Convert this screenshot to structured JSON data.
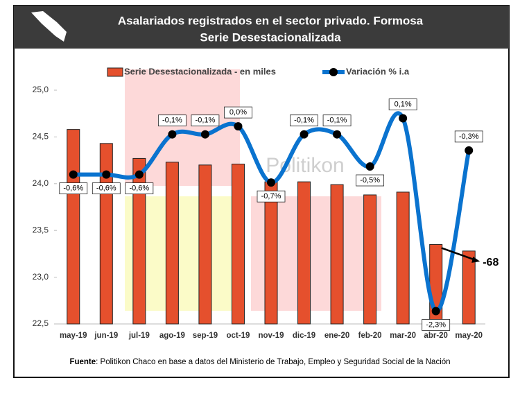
{
  "chart_data": {
    "type": "bar-line",
    "title": "Asalariados registrados en el sector privado. Formosa",
    "subtitle": "Serie Desestacionalizada",
    "categories": [
      "may-19",
      "jun-19",
      "jul-19",
      "ago-19",
      "sep-19",
      "oct-19",
      "nov-19",
      "dic-19",
      "ene-20",
      "feb-20",
      "mar-20",
      "abr-20",
      "may-20"
    ],
    "series": [
      {
        "name": "Serie Desestacionalizada - en miles",
        "color": "#e5502d",
        "values": [
          24.58,
          24.43,
          24.27,
          24.23,
          24.2,
          24.21,
          24.02,
          24.02,
          23.99,
          23.88,
          23.91,
          23.35,
          23.28
        ]
      },
      {
        "name": "Variación % i.a",
        "color": "#0a73cf",
        "axis": "y2",
        "values": [
          -0.6,
          -0.6,
          -0.6,
          -0.1,
          -0.1,
          0.0,
          -0.7,
          -0.1,
          -0.1,
          -0.5,
          0.1,
          -2.3,
          -0.3
        ],
        "value_labels": [
          "-0,6%",
          "-0,6%",
          "-0,6%",
          "-0,1%",
          "-0,1%",
          "0,0%",
          "-0,7%",
          "-0,1%",
          "-0,1%",
          "-0,5%",
          "0,1%",
          "-2,3%",
          "-0,3%"
        ]
      }
    ],
    "ylim": [
      22.5,
      25.0
    ],
    "yticks": [
      {
        "value": 22.5,
        "label": "22,5"
      },
      {
        "value": 23.0,
        "label": "23,0"
      },
      {
        "value": 23.5,
        "label": "23,5"
      },
      {
        "value": 24.0,
        "label": "24,0"
      },
      {
        "value": 24.5,
        "label": "24,5"
      },
      {
        "value": 25.0,
        "label": "25,0"
      }
    ],
    "y2lim": [
      -2.46,
      0.45
    ],
    "annotation": "-68",
    "watermark": "Politikon",
    "source_label": "Fuente",
    "source_text": ": Politikon Chaco en base a datos del Ministerio de Trabajo, Empleo y Seguridad Social de la Nación"
  }
}
